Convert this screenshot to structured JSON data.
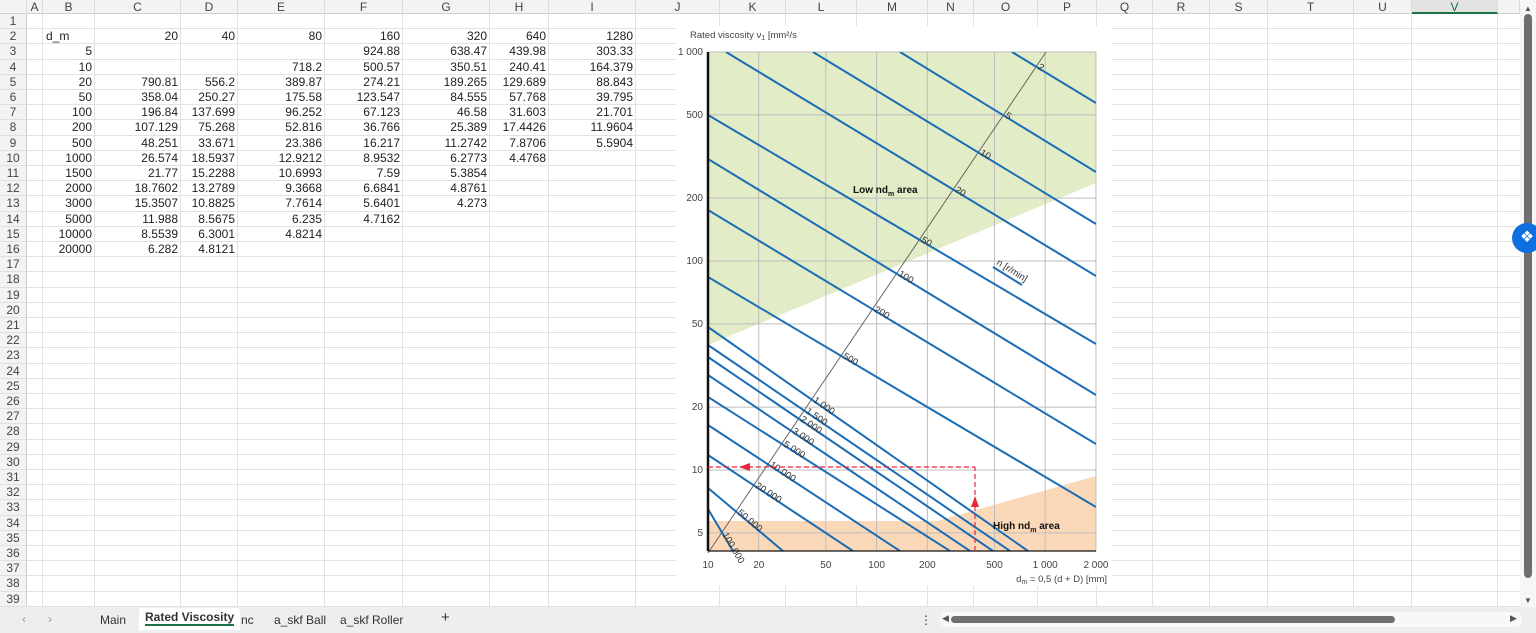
{
  "sheet": {
    "columns": [
      "A",
      "B",
      "C",
      "D",
      "E",
      "F",
      "G",
      "H",
      "I",
      "J",
      "K",
      "L",
      "M",
      "N",
      "O",
      "P",
      "Q",
      "R",
      "S",
      "T",
      "U",
      "V"
    ],
    "selected_column": "V",
    "row_count": 39,
    "data_rows": [
      [
        "d_m",
        "20",
        "40",
        "80",
        "160",
        "320",
        "640",
        "1280"
      ],
      [
        "5",
        "",
        "",
        "",
        "924.88",
        "638.47",
        "439.98",
        "303.33"
      ],
      [
        "10",
        "",
        "",
        "718.2",
        "500.57",
        "350.51",
        "240.41",
        "164.379"
      ],
      [
        "20",
        "790.81",
        "556.2",
        "389.87",
        "274.21",
        "189.265",
        "129.689",
        "88.843"
      ],
      [
        "50",
        "358.04",
        "250.27",
        "175.58",
        "123.547",
        "84.555",
        "57.768",
        "39.795"
      ],
      [
        "100",
        "196.84",
        "137.699",
        "96.252",
        "67.123",
        "46.58",
        "31.603",
        "21.701"
      ],
      [
        "200",
        "107.129",
        "75.268",
        "52.816",
        "36.766",
        "25.389",
        "17.4426",
        "11.9604"
      ],
      [
        "500",
        "48.251",
        "33.671",
        "23.386",
        "16.217",
        "11.2742",
        "7.8706",
        "5.5904"
      ],
      [
        "1000",
        "26.574",
        "18.5937",
        "12.9212",
        "8.9532",
        "6.2773",
        "4.4768",
        ""
      ],
      [
        "1500",
        "21.77",
        "15.2288",
        "10.6993",
        "7.59",
        "5.3854",
        "",
        ""
      ],
      [
        "2000",
        "18.7602",
        "13.2789",
        "9.3668",
        "6.6841",
        "4.8761",
        "",
        ""
      ],
      [
        "3000",
        "15.3507",
        "10.8825",
        "7.7614",
        "5.6401",
        "4.273",
        "",
        ""
      ],
      [
        "5000",
        "11.988",
        "8.5675",
        "6.235",
        "4.7162",
        "",
        "",
        ""
      ],
      [
        "10000",
        "8.5539",
        "6.3001",
        "4.8214",
        "",
        "",
        "",
        ""
      ],
      [
        "20000",
        "6.282",
        "4.8121",
        "",
        "",
        "",
        "",
        ""
      ]
    ]
  },
  "chart_image": {
    "y_title": "Rated viscosity ν",
    "y_title_sub": "1",
    "y_title_unit": " [mm²/s",
    "x_title": "d",
    "x_title_sub": "m",
    "x_title_rest": " = 0,5 (d + D) [mm]",
    "y_ticks": [
      "1 000",
      "500",
      "200",
      "100",
      "50",
      "20",
      "10",
      "5"
    ],
    "x_ticks": [
      "10",
      "20",
      "50",
      "100",
      "200",
      "500",
      "1 000",
      "2 000"
    ],
    "speed_labels": [
      "2",
      "5",
      "10",
      "20",
      "50",
      "100",
      "200",
      "500",
      "1 000",
      "1 500",
      "2 000",
      "3 000",
      "5 000",
      "10 000",
      "20 000",
      "50 000",
      "100 000"
    ],
    "speed_axis_label": "n [r/min]",
    "low_area": {
      "text": "Low nd",
      "sub": "m",
      "rest": " area",
      "color": "#e2ecc6"
    },
    "high_area": {
      "text": "High nd",
      "sub": "m",
      "rest": " area",
      "color": "#fbd9b8"
    },
    "line_color": "#1a6db5",
    "guide_color": "#e8283a"
  },
  "tabs": [
    {
      "label": "Main",
      "active": false
    },
    {
      "label": "Rated Viscosity",
      "active": true
    },
    {
      "label": "nc",
      "active": false
    },
    {
      "label": "a_skf Ball",
      "active": false
    },
    {
      "label": "a_skf Roller",
      "active": false
    }
  ],
  "add_sheet_label": "+",
  "more_label": "⋮"
}
